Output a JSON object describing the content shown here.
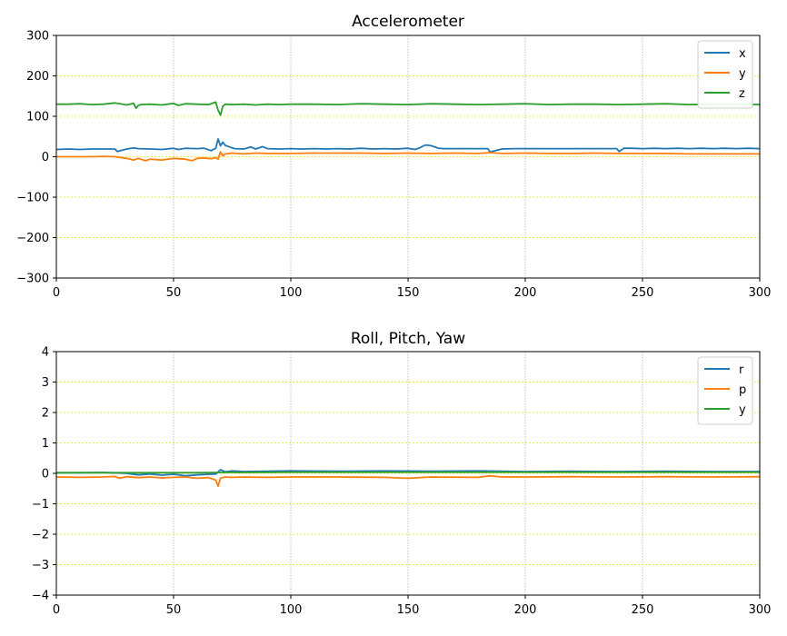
{
  "chart_data": [
    {
      "type": "line",
      "title": "Accelerometer",
      "xlabel": "",
      "ylabel": "",
      "xlim": [
        0,
        300
      ],
      "ylim": [
        -300,
        300
      ],
      "xticks": [
        0,
        50,
        100,
        150,
        200,
        250,
        300
      ],
      "yticks": [
        -300,
        -200,
        -100,
        0,
        100,
        200,
        300
      ],
      "grid": true,
      "legend_position": "top-right",
      "series": [
        {
          "name": "x",
          "color": "#1f77b4",
          "x": [
            0,
            5,
            10,
            15,
            20,
            25,
            26,
            30,
            33,
            35,
            40,
            45,
            50,
            52,
            55,
            60,
            63,
            66,
            68,
            69,
            70,
            71,
            72,
            74,
            76,
            80,
            83,
            85,
            88,
            90,
            95,
            100,
            105,
            110,
            115,
            120,
            125,
            130,
            135,
            140,
            145,
            150,
            153,
            155,
            157,
            158,
            160,
            163,
            165,
            170,
            175,
            180,
            184,
            185,
            190,
            195,
            200,
            205,
            210,
            215,
            220,
            225,
            230,
            235,
            239,
            240,
            242,
            245,
            250,
            255,
            260,
            265,
            270,
            275,
            280,
            285,
            290,
            295,
            300
          ],
          "y": [
            18,
            19,
            18,
            19,
            19,
            19,
            13,
            19,
            22,
            20,
            19,
            18,
            21,
            18,
            21,
            20,
            21,
            15,
            21,
            44,
            27,
            36,
            28,
            24,
            20,
            19,
            24,
            19,
            25,
            20,
            19,
            20,
            19,
            20,
            19,
            20,
            19,
            21,
            19,
            20,
            19,
            21,
            18,
            22,
            28,
            29,
            27,
            21,
            20,
            20,
            20,
            20,
            20,
            12,
            19,
            20,
            20,
            20,
            20,
            20,
            20,
            20,
            20,
            20,
            20,
            13,
            21,
            21,
            20,
            21,
            20,
            21,
            20,
            21,
            20,
            21,
            20,
            21,
            20
          ]
        },
        {
          "name": "y",
          "color": "#ff7f0e",
          "x": [
            0,
            5,
            10,
            15,
            20,
            25,
            30,
            33,
            35,
            38,
            40,
            45,
            50,
            55,
            58,
            60,
            63,
            66,
            68,
            69,
            70,
            71,
            72,
            75,
            80,
            85,
            90,
            95,
            100,
            110,
            120,
            130,
            140,
            150,
            160,
            170,
            180,
            185,
            190,
            200,
            210,
            220,
            230,
            240,
            250,
            260,
            270,
            280,
            290,
            300
          ],
          "y": [
            0,
            0,
            0,
            0,
            1,
            0,
            -4,
            -8,
            -4,
            -10,
            -6,
            -8,
            -4,
            -6,
            -10,
            -4,
            -3,
            -5,
            -2,
            -6,
            12,
            2,
            7,
            9,
            7,
            9,
            8,
            8,
            8,
            9,
            9,
            9,
            8,
            9,
            8,
            9,
            8,
            10,
            8,
            9,
            8,
            8,
            9,
            8,
            8,
            8,
            7,
            7,
            7,
            7
          ]
        },
        {
          "name": "z",
          "color": "#2ca02c",
          "x": [
            0,
            5,
            10,
            15,
            20,
            25,
            30,
            33,
            34,
            35,
            36,
            40,
            45,
            50,
            52,
            55,
            60,
            65,
            68,
            69,
            70,
            71,
            72,
            75,
            80,
            85,
            90,
            95,
            100,
            110,
            120,
            130,
            140,
            150,
            160,
            170,
            180,
            190,
            200,
            210,
            220,
            230,
            240,
            250,
            260,
            270,
            280,
            290,
            300
          ],
          "y": [
            130,
            130,
            131,
            129,
            130,
            133,
            128,
            132,
            120,
            127,
            129,
            130,
            128,
            132,
            127,
            131,
            130,
            129,
            135,
            115,
            103,
            125,
            130,
            129,
            130,
            128,
            130,
            129,
            130,
            130,
            129,
            131,
            130,
            129,
            131,
            130,
            129,
            130,
            131,
            129,
            130,
            130,
            129,
            130,
            131,
            129,
            130,
            130,
            129
          ]
        }
      ]
    },
    {
      "type": "line",
      "title": "Roll, Pitch, Yaw",
      "xlabel": "",
      "ylabel": "",
      "xlim": [
        0,
        300
      ],
      "ylim": [
        -4,
        4
      ],
      "xticks": [
        0,
        50,
        100,
        150,
        200,
        250,
        300
      ],
      "yticks": [
        -4,
        -3,
        -2,
        -1,
        0,
        1,
        2,
        3,
        4
      ],
      "grid": true,
      "legend_position": "top-right",
      "series": [
        {
          "name": "r",
          "color": "#1f77b4",
          "x": [
            0,
            10,
            20,
            30,
            35,
            40,
            45,
            50,
            55,
            60,
            65,
            68,
            70,
            72,
            75,
            80,
            90,
            100,
            120,
            140,
            160,
            180,
            200,
            220,
            240,
            260,
            280,
            300
          ],
          "y": [
            0.02,
            0.02,
            0.03,
            0.0,
            -0.05,
            -0.02,
            -0.06,
            -0.03,
            -0.08,
            -0.05,
            -0.03,
            -0.02,
            0.12,
            0.05,
            0.08,
            0.06,
            0.07,
            0.08,
            0.07,
            0.08,
            0.07,
            0.08,
            0.06,
            0.07,
            0.06,
            0.07,
            0.06,
            0.06
          ]
        },
        {
          "name": "p",
          "color": "#ff7f0e",
          "x": [
            0,
            10,
            20,
            25,
            27,
            30,
            35,
            40,
            45,
            50,
            55,
            60,
            65,
            68,
            69,
            70,
            72,
            75,
            80,
            90,
            100,
            120,
            140,
            150,
            160,
            180,
            185,
            190,
            200,
            220,
            240,
            260,
            280,
            300
          ],
          "y": [
            -0.12,
            -0.13,
            -0.12,
            -0.1,
            -0.16,
            -0.11,
            -0.14,
            -0.12,
            -0.15,
            -0.13,
            -0.12,
            -0.16,
            -0.14,
            -0.22,
            -0.42,
            -0.16,
            -0.12,
            -0.13,
            -0.12,
            -0.13,
            -0.12,
            -0.12,
            -0.13,
            -0.16,
            -0.12,
            -0.13,
            -0.08,
            -0.12,
            -0.12,
            -0.11,
            -0.12,
            -0.11,
            -0.12,
            -0.11
          ]
        },
        {
          "name": "y",
          "color": "#2ca02c",
          "x": [
            0,
            20,
            40,
            60,
            70,
            80,
            100,
            150,
            200,
            250,
            300
          ],
          "y": [
            0.02,
            0.02,
            0.02,
            0.02,
            0.03,
            0.03,
            0.04,
            0.04,
            0.04,
            0.04,
            0.04
          ]
        }
      ]
    }
  ]
}
